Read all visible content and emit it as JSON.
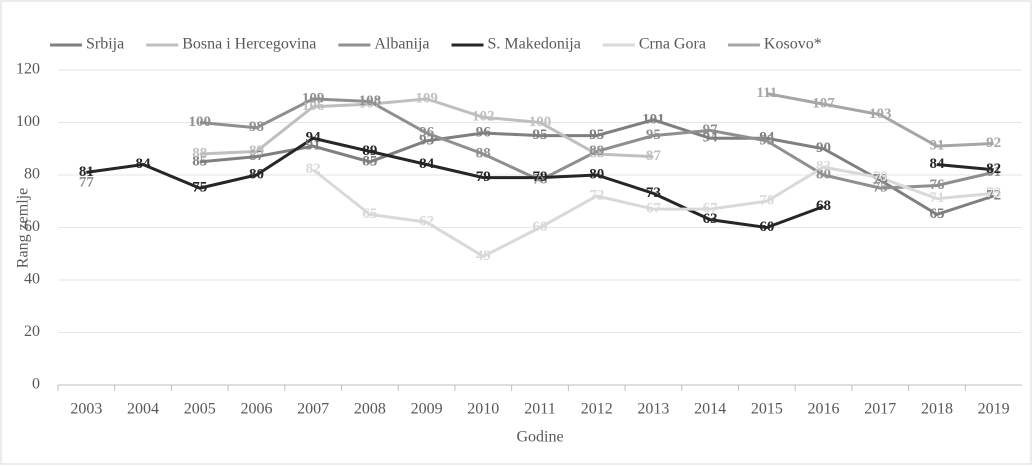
{
  "chart_data": {
    "type": "line",
    "categories": [
      "2003",
      "2004",
      "2005",
      "2006",
      "2007",
      "2008",
      "2009",
      "2010",
      "2011",
      "2012",
      "2013",
      "2014",
      "2015",
      "2016",
      "2017",
      "2018",
      "2019"
    ],
    "series": [
      {
        "name": "Srbija",
        "color": "#7f7f7f",
        "values": [
          null,
          null,
          85,
          87,
          91,
          85,
          93,
          96,
          95,
          95,
          101,
          94,
          94,
          90,
          78,
          65,
          72
        ]
      },
      {
        "name": "Bosna i Hercegovina",
        "color": "#bfbfbf",
        "values": [
          null,
          null,
          88,
          89,
          106,
          107,
          109,
          102,
          100,
          88,
          87,
          null,
          null,
          null,
          null,
          null,
          null
        ]
      },
      {
        "name": "Albanija",
        "color": "#8f8f8f",
        "values": [
          77,
          null,
          100,
          98,
          109,
          108,
          96,
          88,
          78,
          89,
          95,
          97,
          93,
          80,
          75,
          76,
          81
        ]
      },
      {
        "name": "S. Makedonija",
        "color": "#262626",
        "values": [
          81,
          84,
          75,
          80,
          94,
          89,
          84,
          79,
          79,
          80,
          73,
          63,
          60,
          68,
          null,
          84,
          82
        ]
      },
      {
        "name": "Crna Gora",
        "color": "#d9d9d9",
        "values": [
          null,
          null,
          null,
          null,
          82,
          65,
          62,
          49,
          60,
          72,
          67,
          67,
          70,
          83,
          79,
          71,
          73
        ]
      },
      {
        "name": "Kosovo*",
        "color": "#a6a6a6",
        "values": [
          null,
          null,
          null,
          null,
          null,
          null,
          null,
          null,
          null,
          null,
          null,
          null,
          111,
          107,
          103,
          91,
          92
        ]
      }
    ],
    "x_label": "Godine",
    "y_label": "Rang zemlje",
    "ylim": [
      0,
      120
    ],
    "yticks": [
      0,
      20,
      40,
      60,
      80,
      100,
      120
    ],
    "grid": true
  }
}
